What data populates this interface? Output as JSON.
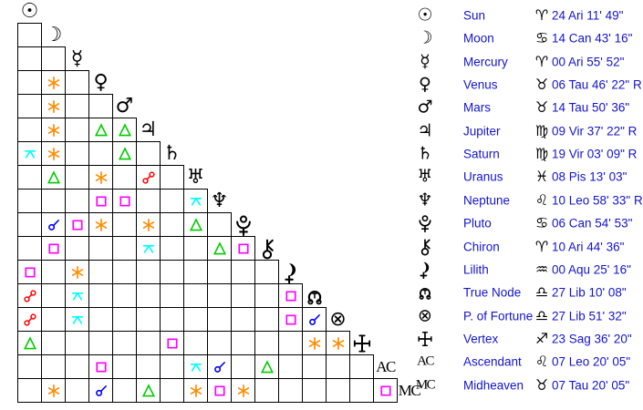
{
  "colors": {
    "text": "#1414cc",
    "glyph": "#000000",
    "grid_line": "#000000",
    "background": "#ffffff"
  },
  "grid_labels": {
    "ac": "AC",
    "mc": "MC"
  },
  "chart_data": {
    "type": "table",
    "title": "Natal aspectarian grid with planetary positions",
    "aspect_types": {
      "conjunction": "#0000ff",
      "sextile": "#ff8c00",
      "square": "#ff00ff",
      "trine": "#00cc00",
      "opposition": "#ff0000",
      "quincunx": "#00ffff"
    },
    "points": [
      {
        "id": "sun",
        "name": "Sun",
        "sign": "aries",
        "position": "24 Ari 11' 49\""
      },
      {
        "id": "moon",
        "name": "Moon",
        "sign": "cancer",
        "position": "14 Can 43' 16\""
      },
      {
        "id": "mercury",
        "name": "Mercury",
        "sign": "aries",
        "position": "00 Ari 55' 52\""
      },
      {
        "id": "venus",
        "name": "Venus",
        "sign": "taurus",
        "position": "06 Tau 46' 22\" R"
      },
      {
        "id": "mars",
        "name": "Mars",
        "sign": "taurus",
        "position": "14 Tau 50' 36\""
      },
      {
        "id": "jupiter",
        "name": "Jupiter",
        "sign": "virgo",
        "position": "09 Vir 37' 22\" R"
      },
      {
        "id": "saturn",
        "name": "Saturn",
        "sign": "virgo",
        "position": "19 Vir 03' 09\" R"
      },
      {
        "id": "uranus",
        "name": "Uranus",
        "sign": "pisces",
        "position": "08 Pis 13' 03\""
      },
      {
        "id": "neptune",
        "name": "Neptune",
        "sign": "leo",
        "position": "10 Leo 58' 33\" R"
      },
      {
        "id": "pluto",
        "name": "Pluto",
        "sign": "cancer",
        "position": "06 Can 54' 53\""
      },
      {
        "id": "chiron",
        "name": "Chiron",
        "sign": "aries",
        "position": "10 Ari 44' 36\""
      },
      {
        "id": "lilith",
        "name": "Lilith",
        "sign": "aquarius",
        "position": "00 Aqu 25' 16\""
      },
      {
        "id": "true-node",
        "name": "True Node",
        "sign": "libra",
        "position": "27 Lib 10' 08\""
      },
      {
        "id": "fortune",
        "name": "P. of Fortune",
        "sign": "libra",
        "position": "27 Lib 51' 32\""
      },
      {
        "id": "vertex",
        "name": "Vertex",
        "sign": "sagittarius",
        "position": "23 Sag 36' 20\""
      },
      {
        "id": "ac",
        "name": "Ascendant",
        "sign": "leo",
        "position": "07 Leo 20' 05\""
      },
      {
        "id": "mc",
        "name": "Midheaven",
        "sign": "taurus",
        "position": "07 Tau 20' 05\""
      }
    ],
    "aspects": [
      {
        "a": "venus",
        "b": "moon",
        "type": "sextile"
      },
      {
        "a": "mars",
        "b": "moon",
        "type": "sextile"
      },
      {
        "a": "jupiter",
        "b": "moon",
        "type": "sextile"
      },
      {
        "a": "jupiter",
        "b": "venus",
        "type": "trine"
      },
      {
        "a": "jupiter",
        "b": "mars",
        "type": "trine"
      },
      {
        "a": "saturn",
        "b": "sun",
        "type": "quincunx"
      },
      {
        "a": "saturn",
        "b": "moon",
        "type": "sextile"
      },
      {
        "a": "saturn",
        "b": "mars",
        "type": "trine"
      },
      {
        "a": "uranus",
        "b": "moon",
        "type": "trine"
      },
      {
        "a": "uranus",
        "b": "venus",
        "type": "sextile"
      },
      {
        "a": "uranus",
        "b": "jupiter",
        "type": "opposition"
      },
      {
        "a": "neptune",
        "b": "venus",
        "type": "square"
      },
      {
        "a": "neptune",
        "b": "mars",
        "type": "square"
      },
      {
        "a": "neptune",
        "b": "uranus",
        "type": "quincunx"
      },
      {
        "a": "pluto",
        "b": "moon",
        "type": "conjunction"
      },
      {
        "a": "pluto",
        "b": "mercury",
        "type": "square"
      },
      {
        "a": "pluto",
        "b": "venus",
        "type": "sextile"
      },
      {
        "a": "pluto",
        "b": "jupiter",
        "type": "sextile"
      },
      {
        "a": "pluto",
        "b": "uranus",
        "type": "trine"
      },
      {
        "a": "chiron",
        "b": "moon",
        "type": "square"
      },
      {
        "a": "chiron",
        "b": "jupiter",
        "type": "quincunx"
      },
      {
        "a": "chiron",
        "b": "neptune",
        "type": "trine"
      },
      {
        "a": "chiron",
        "b": "pluto",
        "type": "square"
      },
      {
        "a": "lilith",
        "b": "sun",
        "type": "square"
      },
      {
        "a": "lilith",
        "b": "mercury",
        "type": "sextile"
      },
      {
        "a": "true-node",
        "b": "sun",
        "type": "opposition"
      },
      {
        "a": "true-node",
        "b": "mercury",
        "type": "quincunx"
      },
      {
        "a": "true-node",
        "b": "lilith",
        "type": "square"
      },
      {
        "a": "fortune",
        "b": "sun",
        "type": "opposition"
      },
      {
        "a": "fortune",
        "b": "mercury",
        "type": "quincunx"
      },
      {
        "a": "fortune",
        "b": "lilith",
        "type": "square"
      },
      {
        "a": "fortune",
        "b": "true-node",
        "type": "conjunction"
      },
      {
        "a": "vertex",
        "b": "sun",
        "type": "trine"
      },
      {
        "a": "vertex",
        "b": "saturn",
        "type": "square"
      },
      {
        "a": "vertex",
        "b": "true-node",
        "type": "sextile"
      },
      {
        "a": "vertex",
        "b": "fortune",
        "type": "sextile"
      },
      {
        "a": "ac",
        "b": "venus",
        "type": "square"
      },
      {
        "a": "ac",
        "b": "uranus",
        "type": "quincunx"
      },
      {
        "a": "ac",
        "b": "neptune",
        "type": "conjunction"
      },
      {
        "a": "ac",
        "b": "chiron",
        "type": "trine"
      },
      {
        "a": "mc",
        "b": "moon",
        "type": "sextile"
      },
      {
        "a": "mc",
        "b": "venus",
        "type": "conjunction"
      },
      {
        "a": "mc",
        "b": "jupiter",
        "type": "trine"
      },
      {
        "a": "mc",
        "b": "uranus",
        "type": "sextile"
      },
      {
        "a": "mc",
        "b": "neptune",
        "type": "square"
      },
      {
        "a": "mc",
        "b": "pluto",
        "type": "sextile"
      },
      {
        "a": "mc",
        "b": "ac",
        "type": "square"
      }
    ]
  }
}
